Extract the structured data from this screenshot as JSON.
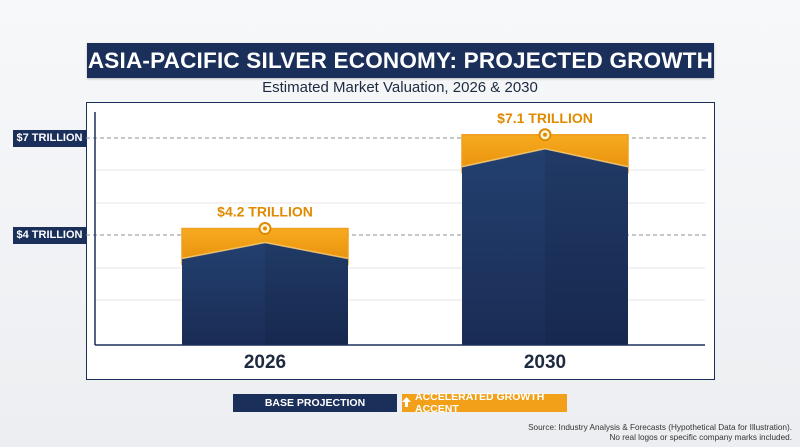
{
  "title": "ASIA-PACIFIC SILVER ECONOMY: PROJECTED GROWTH",
  "subtitle": "Estimated Market Valuation, 2026 & 2030",
  "legend": {
    "base_label": "BASE PROJECTION",
    "accent_label": "ACCELERATED GROWTH ACCENT"
  },
  "source": {
    "line1": "Source: Industry Analysis & Forecasts (Hypothetical Data for Illustration).",
    "line2": "No real logos or specific company marks included."
  },
  "colors": {
    "navy": "#1b2f5b",
    "bar_top": "#23406f",
    "bar_bottom": "#1a2c55",
    "accent": "#f2a019",
    "accent_label": "#e08a00"
  },
  "chart_data": {
    "type": "bar",
    "categories": [
      "2026",
      "2030"
    ],
    "values": [
      4.2,
      7.1
    ],
    "data_labels": [
      "$4.2 TRILLION",
      "$7.1 TRILLION"
    ],
    "y_ticks": [
      {
        "value": 4,
        "label": "$4 TRILLION"
      },
      {
        "value": 7,
        "label": "$7 TRILLION"
      }
    ],
    "unit": "TRILLION",
    "ylim": [
      0,
      8
    ],
    "grid": true,
    "legend_position": "bottom-center",
    "series": [
      {
        "name": "BASE PROJECTION"
      },
      {
        "name": "ACCELERATED GROWTH ACCENT"
      }
    ]
  }
}
